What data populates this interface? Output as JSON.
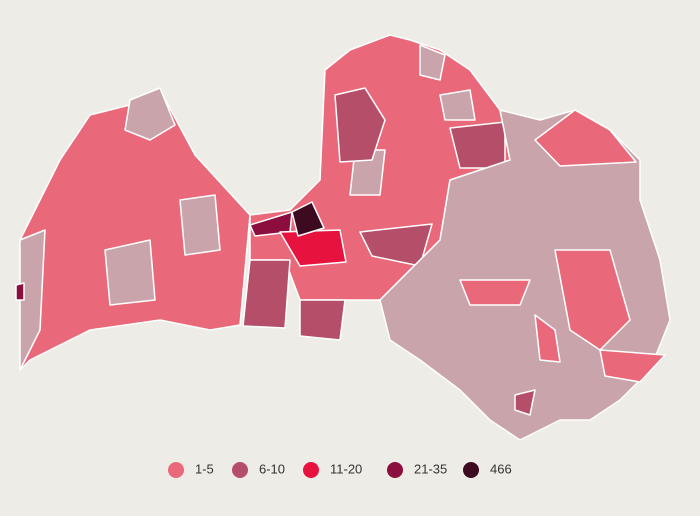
{
  "legend": {
    "items": [
      {
        "label": "1-5",
        "color": "#e9697a"
      },
      {
        "label": "6-10",
        "color": "#b54f69"
      },
      {
        "label": "11-20",
        "color": "#e8123f"
      },
      {
        "label": "21-35",
        "color": "#8c0e3e"
      },
      {
        "label": "466",
        "color": "#3e0a20"
      }
    ]
  }
}
